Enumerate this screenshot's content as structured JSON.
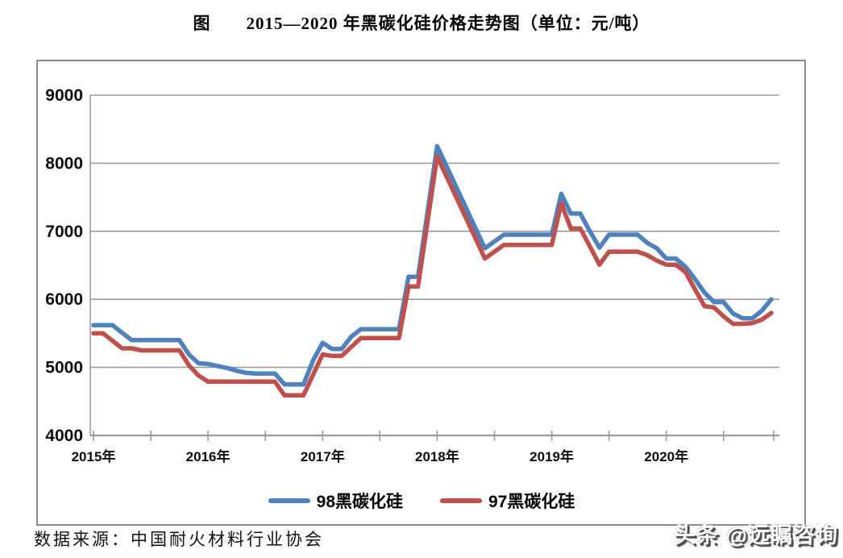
{
  "title": "图　　2015—2020 年黑碳化硅价格走势图（单位：元/吨）",
  "source": "数据来源：中国耐火材料行业协会",
  "watermark": "头条 @远瞩咨询",
  "legend": {
    "items": [
      {
        "label": "98黑碳化硅",
        "color": "#4F81BD"
      },
      {
        "label": "97黑碳化硅",
        "color": "#C0504D"
      }
    ]
  },
  "colors": {
    "grid": "#9c9c9c",
    "axis": "#8a8a8a",
    "series_98": "#4F81BD",
    "series_97": "#C0504D"
  },
  "chart_data": {
    "type": "line",
    "title": "图 2015—2020 年黑碳化硅价格走势图（单位：元/吨）",
    "unit": "元/吨",
    "xlabel": "",
    "ylabel": "",
    "ylim": [
      4000,
      9000
    ],
    "y_ticks": [
      4000,
      5000,
      6000,
      7000,
      8000,
      9000
    ],
    "x_year_labels": [
      "2015年",
      "2016年",
      "2017年",
      "2018年",
      "2019年",
      "2020年"
    ],
    "grid": "horizontal",
    "legend_position": "bottom",
    "x": [
      "2015-01",
      "2015-02",
      "2015-03",
      "2015-04",
      "2015-05",
      "2015-06",
      "2015-07",
      "2015-08",
      "2015-09",
      "2015-10",
      "2015-11",
      "2015-12",
      "2016-01",
      "2016-02",
      "2016-03",
      "2016-04",
      "2016-05",
      "2016-06",
      "2016-07",
      "2016-08",
      "2016-09",
      "2016-10",
      "2016-11",
      "2016-12",
      "2017-01",
      "2017-02",
      "2017-03",
      "2017-04",
      "2017-05",
      "2017-06",
      "2017-07",
      "2017-08",
      "2017-09",
      "2017-10",
      "2017-11",
      "2017-12",
      "2018-01",
      "2018-02",
      "2018-03",
      "2018-04",
      "2018-05",
      "2018-06",
      "2018-07",
      "2018-08",
      "2018-09",
      "2018-10",
      "2018-11",
      "2018-12",
      "2019-01",
      "2019-02",
      "2019-03",
      "2019-04",
      "2019-05",
      "2019-06",
      "2019-07",
      "2019-08",
      "2019-09",
      "2019-10",
      "2019-11",
      "2019-12",
      "2020-01",
      "2020-02",
      "2020-03",
      "2020-04",
      "2020-05",
      "2020-06",
      "2020-07",
      "2020-08",
      "2020-09",
      "2020-10",
      "2020-11",
      "2020-12"
    ],
    "series": [
      {
        "name": "98黑碳化硅",
        "color": "#4F81BD",
        "values": [
          5620,
          5620,
          5620,
          5510,
          5400,
          5400,
          5400,
          5400,
          5400,
          5400,
          5190,
          5060,
          5050,
          5020,
          4990,
          4950,
          4920,
          4910,
          4910,
          4910,
          4750,
          4750,
          4750,
          5100,
          5360,
          5270,
          5270,
          5450,
          5560,
          5560,
          5560,
          5560,
          5560,
          6330,
          6330,
          7290,
          8250,
          7950,
          7650,
          7350,
          7050,
          6750,
          6850,
          6950,
          6950,
          6950,
          6950,
          6950,
          6950,
          7550,
          7260,
          7260,
          7000,
          6760,
          6950,
          6950,
          6950,
          6950,
          6830,
          6750,
          6600,
          6600,
          6480,
          6300,
          6100,
          5960,
          5960,
          5790,
          5720,
          5720,
          5830,
          6000
        ]
      },
      {
        "name": "97黑碳化硅",
        "color": "#C0504D",
        "values": [
          5500,
          5500,
          5390,
          5280,
          5280,
          5250,
          5250,
          5250,
          5250,
          5250,
          5030,
          4880,
          4790,
          4790,
          4790,
          4790,
          4790,
          4790,
          4790,
          4790,
          4590,
          4590,
          4590,
          4890,
          5190,
          5170,
          5170,
          5300,
          5430,
          5430,
          5430,
          5430,
          5430,
          6190,
          6190,
          7150,
          8100,
          7800,
          7500,
          7200,
          6900,
          6600,
          6700,
          6800,
          6800,
          6800,
          6800,
          6800,
          6800,
          7410,
          7040,
          7040,
          6780,
          6510,
          6700,
          6700,
          6700,
          6700,
          6650,
          6570,
          6510,
          6510,
          6400,
          6150,
          5900,
          5880,
          5750,
          5640,
          5640,
          5650,
          5700,
          5800
        ]
      }
    ]
  }
}
